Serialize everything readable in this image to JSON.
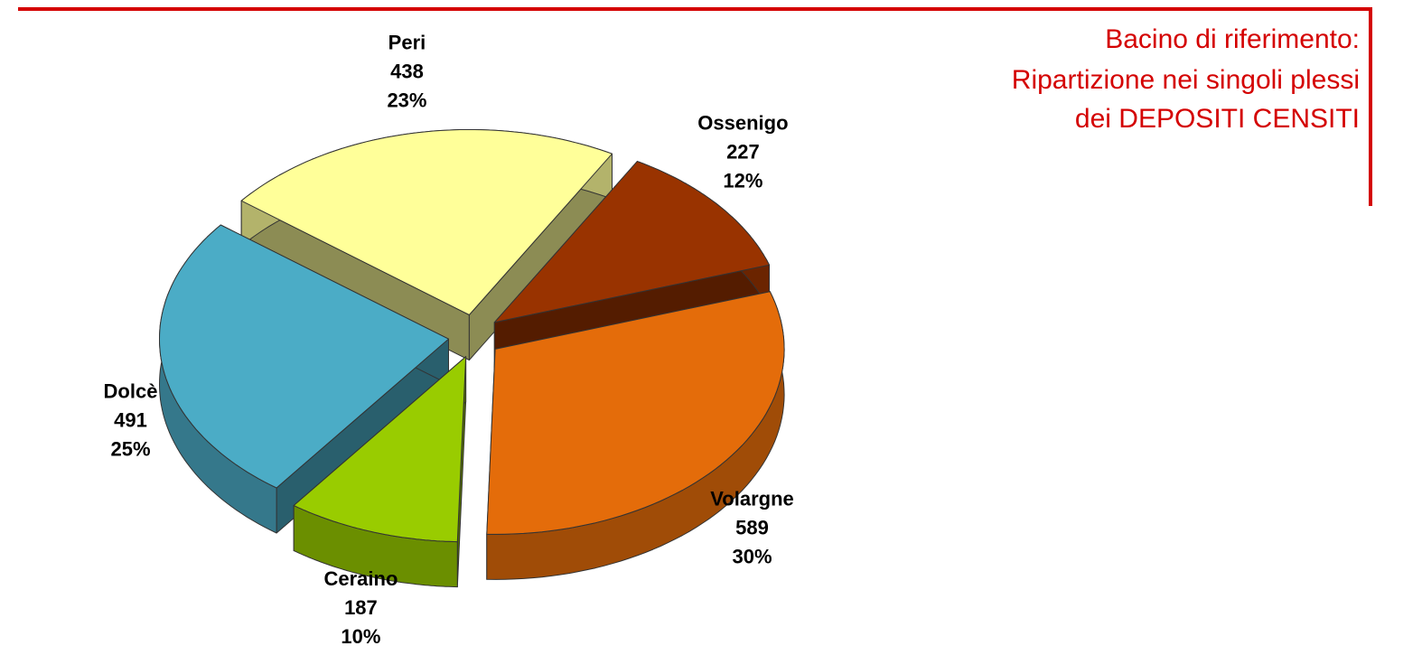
{
  "chart_data": {
    "type": "pie",
    "title": [
      "Bacino di riferimento:",
      "Ripartizione nei singoli plessi",
      "dei DEPOSITI CENSITI"
    ],
    "categories": [
      "Peri",
      "Ossenigo",
      "Volargne",
      "Ceraino",
      "Dolcè"
    ],
    "values": [
      438,
      227,
      589,
      187,
      491
    ],
    "shares": [
      23,
      12,
      30,
      10,
      25
    ],
    "share_labels": [
      "23%",
      "12%",
      "30%",
      "10%",
      "25%"
    ],
    "colors": [
      "#ffff99",
      "#993300",
      "#e46c0a",
      "#99cc00",
      "#4bacc6"
    ],
    "explode": true,
    "view": "3d"
  }
}
